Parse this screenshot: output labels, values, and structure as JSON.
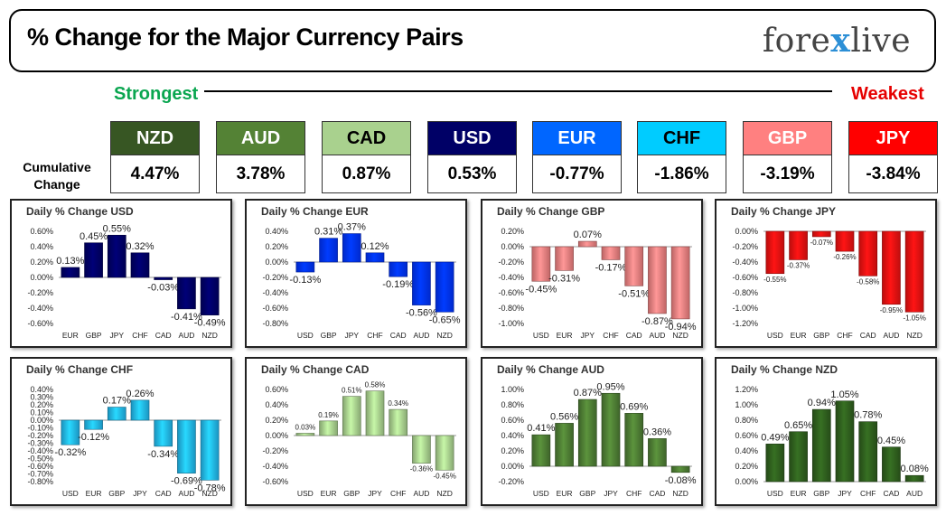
{
  "header": {
    "title": "% Change for the Major Currency Pairs",
    "logo_left": "fore",
    "logo_x": "x",
    "logo_right": "live"
  },
  "legend": {
    "strongest": "Strongest",
    "weakest": "Weakest"
  },
  "cumulative": {
    "label_line1": "Cumulative",
    "label_line2": "Change",
    "items": [
      {
        "code": "NZD",
        "value": "4.47%",
        "bg": "#375623",
        "fg": "#ffffff"
      },
      {
        "code": "AUD",
        "value": "3.78%",
        "bg": "#548235",
        "fg": "#ffffff"
      },
      {
        "code": "CAD",
        "value": "0.87%",
        "bg": "#a9d18e",
        "fg": "#000000"
      },
      {
        "code": "USD",
        "value": "0.53%",
        "bg": "#000066",
        "fg": "#ffffff"
      },
      {
        "code": "EUR",
        "value": "-0.77%",
        "bg": "#0066ff",
        "fg": "#ffffff"
      },
      {
        "code": "CHF",
        "value": "-1.86%",
        "bg": "#00ccff",
        "fg": "#000000"
      },
      {
        "code": "GBP",
        "value": "-3.19%",
        "bg": "#ff8080",
        "fg": "#ffffff"
      },
      {
        "code": "JPY",
        "value": "-3.84%",
        "bg": "#ff0000",
        "fg": "#ffffff"
      }
    ]
  },
  "chart_data": [
    {
      "type": "bar",
      "title": "Daily % Change USD",
      "color": "#000066",
      "categories": [
        "EUR",
        "GBP",
        "JPY",
        "CHF",
        "CAD",
        "AUD",
        "NZD"
      ],
      "values": [
        0.13,
        0.45,
        0.55,
        0.32,
        -0.03,
        -0.41,
        -0.49
      ],
      "labels": [
        "0.13%",
        "0.45%",
        "0.55%",
        "0.32%",
        "-0.03%",
        "-0.41%",
        "-0.49%"
      ],
      "yticks": [
        0.6,
        0.4,
        0.2,
        0.0,
        -0.2,
        -0.4,
        -0.6
      ],
      "ytick_labels": [
        "0.60%",
        "0.40%",
        "0.20%",
        "0.00%",
        "-0.20%",
        "-0.40%",
        "-0.60%"
      ],
      "ylim": [
        -0.6,
        0.6
      ],
      "label_size": 11
    },
    {
      "type": "bar",
      "title": "Daily % Change EUR",
      "color": "#0033ff",
      "categories": [
        "USD",
        "GBP",
        "JPY",
        "CHF",
        "CAD",
        "AUD",
        "NZD"
      ],
      "values": [
        -0.13,
        0.31,
        0.37,
        0.12,
        -0.19,
        -0.56,
        -0.65
      ],
      "labels": [
        "-0.13%",
        "0.31%",
        "0.37%",
        "0.12%",
        "-0.19%",
        "-0.56%",
        "-0.65%"
      ],
      "yticks": [
        0.4,
        0.2,
        0.0,
        -0.2,
        -0.4,
        -0.6,
        -0.8
      ],
      "ytick_labels": [
        "0.40%",
        "0.20%",
        "0.00%",
        "-0.20%",
        "-0.40%",
        "-0.60%",
        "-0.80%"
      ],
      "ylim": [
        -0.8,
        0.4
      ],
      "label_size": 11
    },
    {
      "type": "bar",
      "title": "Daily % Change GBP",
      "color": "#f08080",
      "categories": [
        "USD",
        "EUR",
        "JPY",
        "CHF",
        "CAD",
        "AUD",
        "NZD"
      ],
      "values": [
        -0.45,
        -0.31,
        0.07,
        -0.17,
        -0.51,
        -0.87,
        -0.94
      ],
      "labels": [
        "-0.45%",
        "-0.31%",
        "0.07%",
        "-0.17%",
        "-0.51%",
        "-0.87%",
        "-0.94%"
      ],
      "yticks": [
        0.2,
        0.0,
        -0.2,
        -0.4,
        -0.6,
        -0.8,
        -1.0
      ],
      "ytick_labels": [
        "0.20%",
        "0.00%",
        "-0.20%",
        "-0.40%",
        "-0.60%",
        "-0.80%",
        "-1.00%"
      ],
      "ylim": [
        -1.0,
        0.2
      ],
      "label_size": 11
    },
    {
      "type": "bar",
      "title": "Daily % Change JPY",
      "color": "#ee1111",
      "categories": [
        "USD",
        "EUR",
        "GBP",
        "CHF",
        "CAD",
        "AUD",
        "NZD"
      ],
      "values": [
        -0.55,
        -0.37,
        -0.07,
        -0.26,
        -0.58,
        -0.95,
        -1.05
      ],
      "labels": [
        "-0.55%",
        "-0.37%",
        "-0.07%",
        "-0.26%",
        "-0.58%",
        "-0.95%",
        "-1.05%"
      ],
      "yticks": [
        0.0,
        -0.2,
        -0.4,
        -0.6,
        -0.8,
        -1.0,
        -1.2
      ],
      "ytick_labels": [
        "0.00%",
        "-0.20%",
        "-0.40%",
        "-0.60%",
        "-0.80%",
        "-1.00%",
        "-1.20%"
      ],
      "ylim": [
        -1.2,
        0.0
      ],
      "label_size": 8
    },
    {
      "type": "bar",
      "title": "Daily % Change CHF",
      "color": "#22b8f0",
      "categories": [
        "USD",
        "EUR",
        "GBP",
        "JPY",
        "CAD",
        "AUD",
        "NZD"
      ],
      "values": [
        -0.32,
        -0.12,
        0.17,
        0.26,
        -0.34,
        -0.69,
        -0.78
      ],
      "labels": [
        "-0.32%",
        "-0.12%",
        "0.17%",
        "0.26%",
        "-0.34%",
        "-0.69%",
        "-0.78%"
      ],
      "yticks": [
        0.4,
        0.3,
        0.2,
        0.1,
        0.0,
        -0.1,
        -0.2,
        -0.3,
        -0.4,
        -0.5,
        -0.6,
        -0.7,
        -0.8
      ],
      "ytick_labels": [
        "0.40%",
        "0.30%",
        "0.20%",
        "0.10%",
        "0.00%",
        "-0.10%",
        "-0.20%",
        "-0.30%",
        "-0.40%",
        "-0.50%",
        "-0.60%",
        "-0.70%",
        "-0.80%"
      ],
      "ylim": [
        -0.8,
        0.4
      ],
      "label_size": 11
    },
    {
      "type": "bar",
      "title": "Daily % Change CAD",
      "color": "#a9d18e",
      "categories": [
        "USD",
        "EUR",
        "GBP",
        "JPY",
        "CHF",
        "AUD",
        "NZD"
      ],
      "values": [
        0.03,
        0.19,
        0.51,
        0.58,
        0.34,
        -0.36,
        -0.45
      ],
      "labels": [
        "0.03%",
        "0.19%",
        "0.51%",
        "0.58%",
        "0.34%",
        "-0.36%",
        "-0.45%"
      ],
      "yticks": [
        0.6,
        0.4,
        0.2,
        0.0,
        -0.2,
        -0.4,
        -0.6
      ],
      "ytick_labels": [
        "0.60%",
        "0.40%",
        "0.20%",
        "0.00%",
        "-0.20%",
        "-0.40%",
        "-0.60%"
      ],
      "ylim": [
        -0.6,
        0.6
      ],
      "label_size": 8
    },
    {
      "type": "bar",
      "title": "Daily % Change AUD",
      "color": "#4e7d34",
      "categories": [
        "USD",
        "EUR",
        "GBP",
        "JPY",
        "CHF",
        "CAD",
        "NZD"
      ],
      "values": [
        0.41,
        0.56,
        0.87,
        0.95,
        0.69,
        0.36,
        -0.08
      ],
      "labels": [
        "0.41%",
        "0.56%",
        "0.87%",
        "0.95%",
        "0.69%",
        "0.36%",
        "-0.08%"
      ],
      "yticks": [
        1.0,
        0.8,
        0.6,
        0.4,
        0.2,
        0.0,
        -0.2
      ],
      "ytick_labels": [
        "1.00%",
        "0.80%",
        "0.60%",
        "0.40%",
        "0.20%",
        "0.00%",
        "-0.20%"
      ],
      "ylim": [
        -0.2,
        1.0
      ],
      "label_size": 11
    },
    {
      "type": "bar",
      "title": "Daily % Change NZD",
      "color": "#2f5f1e",
      "categories": [
        "USD",
        "EUR",
        "GBP",
        "JPY",
        "CHF",
        "CAD",
        "AUD"
      ],
      "values": [
        0.49,
        0.65,
        0.94,
        1.05,
        0.78,
        0.45,
        0.08
      ],
      "labels": [
        "0.49%",
        "0.65%",
        "0.94%",
        "1.05%",
        "0.78%",
        "0.45%",
        "0.08%"
      ],
      "yticks": [
        1.2,
        1.0,
        0.8,
        0.6,
        0.4,
        0.2,
        0.0
      ],
      "ytick_labels": [
        "1.20%",
        "1.00%",
        "0.80%",
        "0.60%",
        "0.40%",
        "0.20%",
        "0.00%"
      ],
      "ylim": [
        0.0,
        1.2
      ],
      "label_size": 11
    }
  ]
}
